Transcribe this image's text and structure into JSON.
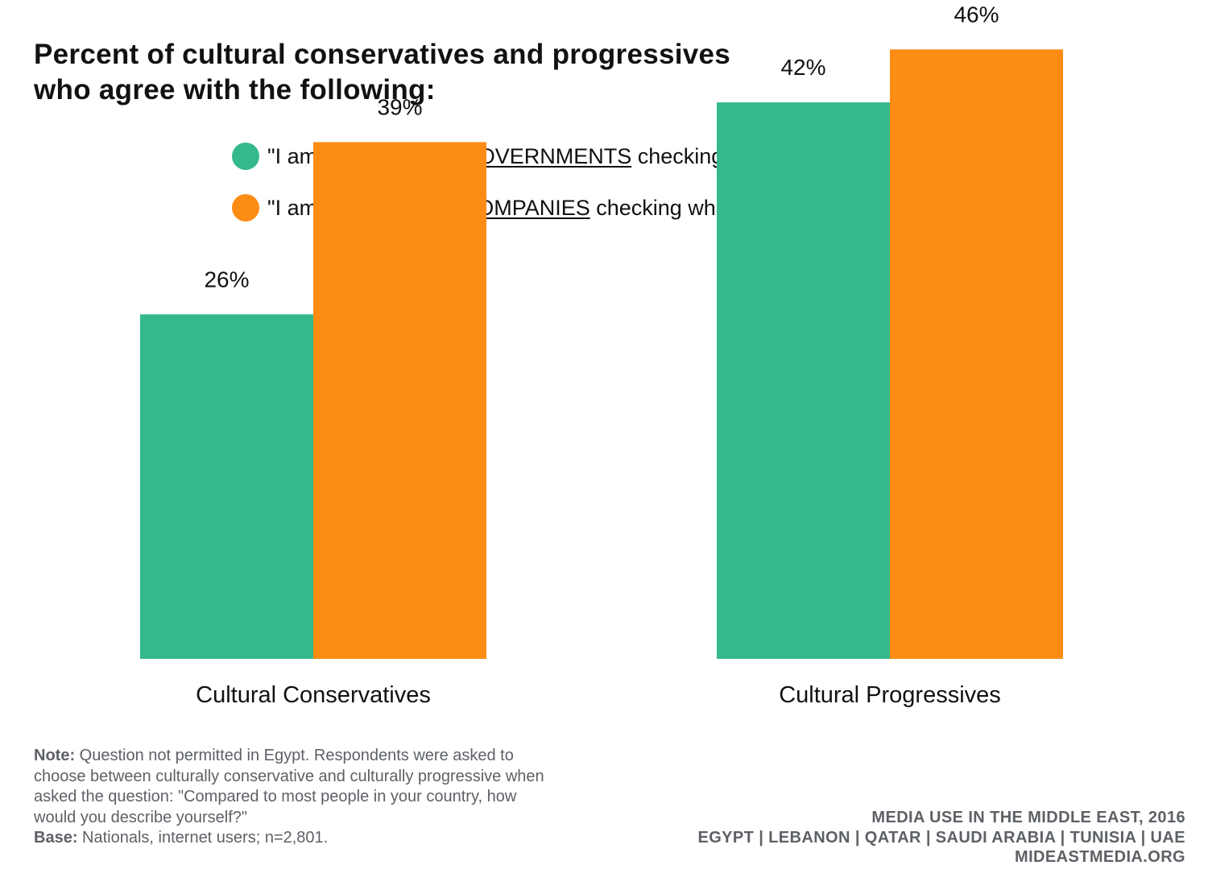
{
  "title_line1": "Percent of cultural conservatives and progressives",
  "title_line2": "who agree with the following:",
  "legend": [
    {
      "prefix": "\"I am worried about ",
      "emphasis": "GOVERNMENTS",
      "suffix": " checking what I do online\"",
      "color": "#33b98a"
    },
    {
      "prefix": "\"I am worried about ",
      "emphasis": "COMPANIES",
      "suffix": " checking what I do online\"",
      "color": "#fd8c15"
    }
  ],
  "chart_data": {
    "type": "bar",
    "categories": [
      "Cultural Conservatives",
      "Cultural Progressives"
    ],
    "series": [
      {
        "name": "\"I am worried about GOVERNMENTS checking what I do online\"",
        "values": [
          26,
          42
        ],
        "color": "#33b98a"
      },
      {
        "name": "\"I am worried about COMPANIES checking what I do online\"",
        "values": [
          39,
          46
        ],
        "color": "#fd8c15"
      }
    ],
    "data_labels": [
      [
        "26%",
        "42%"
      ],
      [
        "39%",
        "46%"
      ]
    ],
    "value_suffix": "%",
    "ylim": [
      0,
      100
    ],
    "grid": false,
    "legend_position": "top"
  },
  "note": {
    "label": "Note:",
    "text": " Question not permitted in Egypt. Respondents were asked to choose between culturally conservative and culturally progressive when asked the question: \"Compared to most people in your country, how would you describe yourself?\"",
    "base_label": "Base:",
    "base_text": " Nationals, internet users; n=2,801."
  },
  "source": {
    "line1": "MEDIA USE IN THE MIDDLE EAST, 2016",
    "line2": "EGYPT | LEBANON | QATAR | SAUDI ARABIA | TUNISIA | UAE",
    "line3": "MIDEASTMEDIA.ORG"
  }
}
